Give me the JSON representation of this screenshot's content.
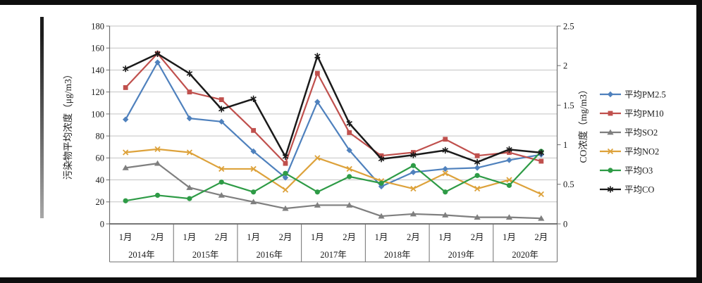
{
  "page": {
    "background": "#ffffff",
    "letterbox_color": "#0e0e0e"
  },
  "chart_data": {
    "type": "line",
    "title": "",
    "month_labels": [
      "1月",
      "2月",
      "1月",
      "2月",
      "1月",
      "2月",
      "1月",
      "2月",
      "1月",
      "2月",
      "1月",
      "2月",
      "1月",
      "2月"
    ],
    "year_labels": [
      "2014年",
      "2015年",
      "2016年",
      "2017年",
      "2018年",
      "2019年",
      "2020年"
    ],
    "left_axis": {
      "title": "污染物平均浓度（μg/m3）",
      "min": 0,
      "max": 180,
      "step": 20,
      "tick_labels": [
        "0",
        "20",
        "40",
        "60",
        "80",
        "100",
        "120",
        "140",
        "160",
        "180"
      ]
    },
    "right_axis": {
      "title": "CO浓度（mg/m3）",
      "min": 0,
      "max": 2.5,
      "step": 0.5,
      "tick_labels": [
        "0",
        "0.5",
        "1",
        "1.5",
        "2",
        "2.5"
      ]
    },
    "grid_on": true,
    "legend_position": "right",
    "series": [
      {
        "name": "平均PM2.5",
        "color": "#4f81bd",
        "marker": "diamond",
        "axis": "left",
        "values": [
          95,
          147,
          96,
          93,
          66,
          42,
          111,
          67,
          34,
          47,
          50,
          51,
          58,
          63
        ]
      },
      {
        "name": "平均PM10",
        "color": "#c0504d",
        "marker": "square",
        "axis": "left",
        "values": [
          124,
          155,
          120,
          113,
          85,
          55,
          137,
          83,
          62,
          65,
          77,
          62,
          65,
          57
        ]
      },
      {
        "name": "平均SO2",
        "color": "#7f7f7f",
        "marker": "triangle",
        "axis": "left",
        "values": [
          51,
          55,
          33,
          26,
          20,
          14,
          17,
          17,
          7,
          9,
          8,
          6,
          6,
          5
        ]
      },
      {
        "name": "平均NO2",
        "color": "#dda23b",
        "marker": "x",
        "axis": "left",
        "values": [
          65,
          68,
          65,
          50,
          50,
          31,
          60,
          50,
          39,
          32,
          46,
          32,
          40,
          27
        ]
      },
      {
        "name": "平均O3",
        "color": "#2e9b46",
        "marker": "circle",
        "axis": "left",
        "values": [
          21,
          26,
          23,
          38,
          29,
          46,
          29,
          43,
          37,
          53,
          29,
          44,
          35,
          66
        ]
      },
      {
        "name": "平均CO",
        "color": "#1a1a1a",
        "marker": "asterisk",
        "axis": "right",
        "values": [
          1.96,
          2.15,
          1.9,
          1.45,
          1.58,
          0.85,
          2.12,
          1.27,
          0.82,
          0.87,
          0.93,
          0.78,
          0.94,
          0.9
        ]
      }
    ]
  }
}
